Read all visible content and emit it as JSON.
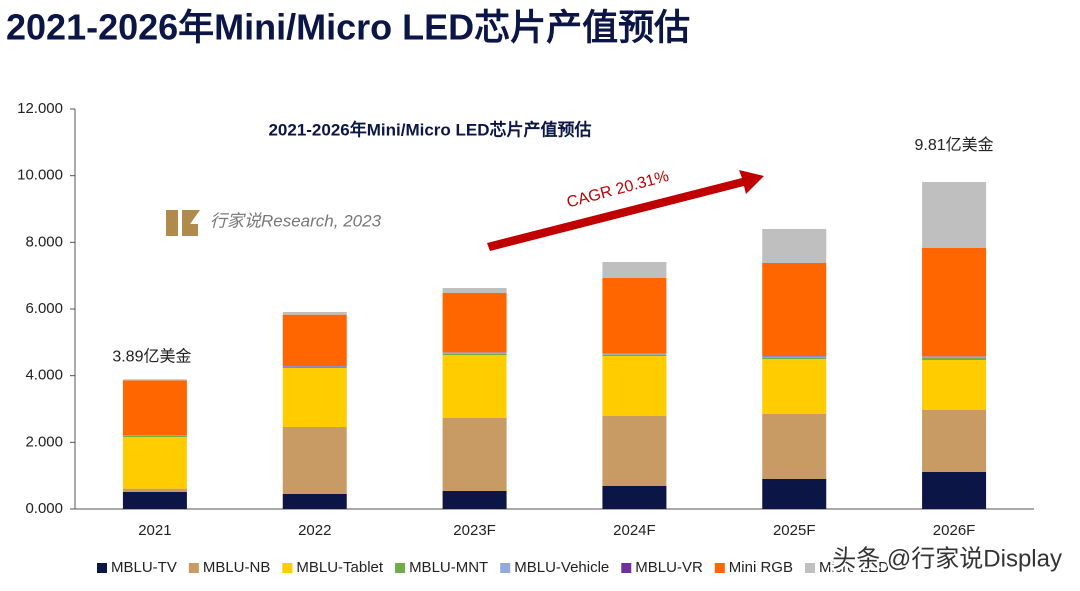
{
  "page_title": "2021-2026年Mini/Micro LED芯片产值预估",
  "chart_data": {
    "type": "bar",
    "stacked": true,
    "title": "2021-2026年Mini/Micro LED芯片产值预估",
    "categories": [
      "2021",
      "2022",
      "2023F",
      "2024F",
      "2025F",
      "2026F"
    ],
    "series": [
      {
        "name": "MBLU-TV",
        "color": "#0b1646",
        "values": [
          0.51,
          0.45,
          0.54,
          0.69,
          0.9,
          1.11
        ]
      },
      {
        "name": "MBLU-NB",
        "color": "#c89b64",
        "values": [
          0.1,
          2.01,
          2.19,
          2.1,
          1.95,
          1.86
        ]
      },
      {
        "name": "MBLU-Tablet",
        "color": "#ffcc00",
        "values": [
          1.55,
          1.77,
          1.89,
          1.8,
          1.65,
          1.5
        ]
      },
      {
        "name": "MBLU-MNT",
        "color": "#70ad47",
        "values": [
          0.03,
          0.03,
          0.04,
          0.04,
          0.05,
          0.06
        ]
      },
      {
        "name": "MBLU-Vehicle",
        "color": "#8faadc",
        "values": [
          0.02,
          0.02,
          0.03,
          0.03,
          0.03,
          0.04
        ]
      },
      {
        "name": "MBLU-VR",
        "color": "#7030a0",
        "values": [
          0,
          0.01,
          0.01,
          0.01,
          0.01,
          0.01
        ]
      },
      {
        "name": "Mini RGB",
        "color": "#ff6600",
        "values": [
          1.65,
          1.54,
          1.78,
          2.26,
          2.79,
          3.25
        ]
      },
      {
        "name": "Micro LED",
        "color": "#bfbfbf",
        "values": [
          0.03,
          0.08,
          0.15,
          0.48,
          1.02,
          1.98
        ]
      }
    ],
    "ylim": [
      0,
      12
    ],
    "yticks": [
      {
        "value": 0,
        "label": "0.000"
      },
      {
        "value": 2,
        "label": "2.000"
      },
      {
        "value": 4,
        "label": "4.000"
      },
      {
        "value": 6,
        "label": "6.000"
      },
      {
        "value": 8,
        "label": "8.000"
      },
      {
        "value": 10,
        "label": "10.000"
      },
      {
        "value": 12,
        "label": "12.000"
      }
    ],
    "grid": false,
    "legend": "bottom",
    "annotations": [
      "3.89亿美金",
      "9.81亿美金",
      "CAGR 20.31%"
    ],
    "source": "行家说Research, 2023"
  },
  "watermark": "头条 @行家说Display"
}
